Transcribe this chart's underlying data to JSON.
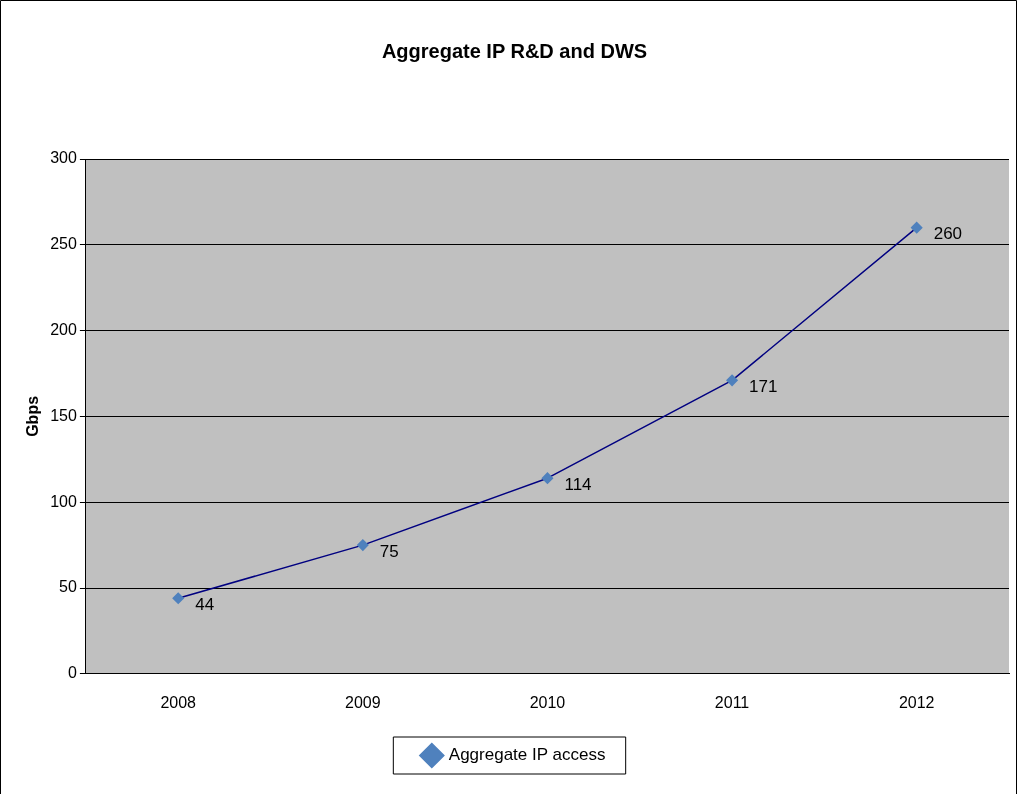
{
  "chart_data": {
    "type": "line",
    "title": "Aggregate IP R&D and DWS",
    "ylabel": "Gbps",
    "categories": [
      "2008",
      "2009",
      "2010",
      "2011",
      "2012"
    ],
    "series": [
      {
        "name": "Aggregate IP access",
        "color": "#000080",
        "values": [
          44,
          75,
          114,
          171,
          260
        ]
      }
    ],
    "ylim": [
      0,
      300
    ],
    "yticks": [
      0,
      50,
      100,
      150,
      200,
      250,
      300
    ],
    "grid": "y",
    "legend": "bottom",
    "marker": "diamond",
    "data_labels": true
  }
}
